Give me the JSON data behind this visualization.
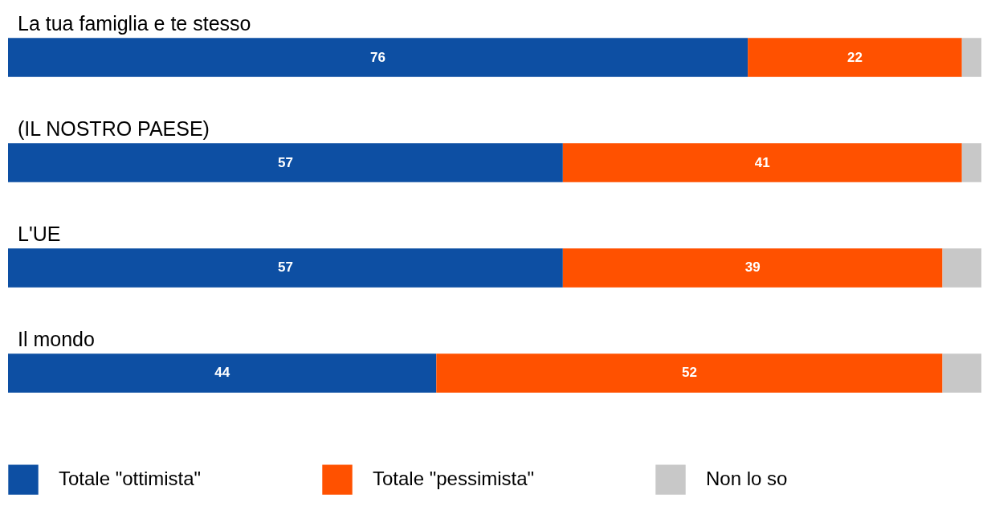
{
  "chart_data": {
    "type": "bar",
    "orientation": "horizontal",
    "stacked": true,
    "categories": [
      "La tua famiglia e te stesso",
      "(IL NOSTRO PAESE)",
      "L'UE",
      "Il mondo"
    ],
    "xlim": [
      0,
      100
    ],
    "tick_labels": false,
    "legend": "bottom",
    "series": [
      {
        "name": "Totale \"ottimista\"",
        "color": "#0d4fa3",
        "values": [
          76,
          57,
          57,
          44
        ],
        "value_labels": [
          "76",
          "57",
          "57",
          "44"
        ]
      },
      {
        "name": "Totale \"pessimista\"",
        "color": "#ff5100",
        "values": [
          22,
          41,
          39,
          52
        ],
        "value_labels": [
          "22",
          "41",
          "39",
          "52"
        ]
      },
      {
        "name": "Non lo so",
        "color": "#c8c8c8",
        "values": [
          2,
          2,
          4,
          4
        ],
        "value_labels": [
          null,
          null,
          null,
          null
        ]
      }
    ]
  }
}
